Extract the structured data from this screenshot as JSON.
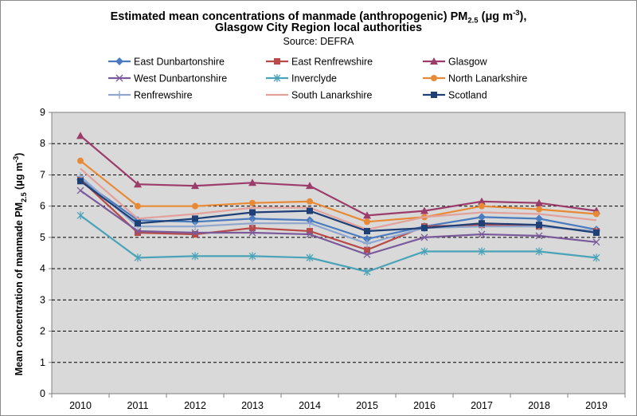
{
  "title_line1": "Estimated mean concentrations of manmade (anthropogenic) PM",
  "title_line1_sub": "2.5",
  "title_line1_unit": "(μg m",
  "title_line1_sup": "-3",
  "title_line1_end": "),",
  "title_line2": "Glasgow City Region local authorities",
  "source": "Source:  DEFRA",
  "chart_data": {
    "type": "line",
    "ylabel": "Mean concentration of manmade PM",
    "ylabel_sub": "2.5",
    "ylabel_unit": " (μg m",
    "ylabel_sup": "-3",
    "ylabel_end": ")",
    "ylim": [
      0,
      9
    ],
    "yticks": [
      "0",
      "1",
      "2",
      "3",
      "4",
      "5",
      "6",
      "7",
      "8",
      "9"
    ],
    "categories": [
      "2010",
      "2011",
      "2012",
      "2013",
      "2014",
      "2015",
      "2016",
      "2017",
      "2018",
      "2019"
    ],
    "grid": "horizontal dashed",
    "legend_position": "top",
    "series": [
      {
        "name": "East Dunbartonshire",
        "color": "#4a7bbf",
        "marker": "diamond",
        "values": [
          6.85,
          5.55,
          5.5,
          5.6,
          5.55,
          4.95,
          5.35,
          5.65,
          5.6,
          5.25
        ]
      },
      {
        "name": "East Renfrewshire",
        "color": "#b84a47",
        "marker": "square",
        "values": [
          6.85,
          5.15,
          5.1,
          5.3,
          5.2,
          4.6,
          5.35,
          5.4,
          5.35,
          5.2
        ]
      },
      {
        "name": "Glasgow",
        "color": "#9b3c6b",
        "marker": "triangle",
        "values": [
          8.25,
          6.7,
          6.65,
          6.75,
          6.65,
          5.7,
          5.85,
          6.15,
          6.1,
          5.85
        ]
      },
      {
        "name": "West Dunbartonshire",
        "color": "#7a5a9a",
        "marker": "x",
        "values": [
          6.5,
          5.2,
          5.15,
          5.15,
          5.1,
          4.45,
          5.0,
          5.1,
          5.05,
          4.85
        ]
      },
      {
        "name": "Inverclyde",
        "color": "#4aa3b8",
        "marker": "asterisk",
        "values": [
          5.7,
          4.35,
          4.4,
          4.4,
          4.35,
          3.9,
          4.55,
          4.55,
          4.55,
          4.35
        ]
      },
      {
        "name": "North Lanarkshire",
        "color": "#e88a35",
        "marker": "circle",
        "values": [
          7.45,
          6.0,
          6.0,
          6.1,
          6.15,
          5.5,
          5.65,
          6.0,
          5.9,
          5.75
        ]
      },
      {
        "name": "Renfrewshire",
        "color": "#8fa6cf",
        "marker": "plus",
        "values": [
          6.95,
          5.35,
          5.35,
          5.45,
          5.45,
          4.8,
          5.3,
          5.35,
          5.35,
          5.2
        ]
      },
      {
        "name": "South Lanarkshire",
        "color": "#e3a19c",
        "marker": "none",
        "values": [
          7.2,
          5.6,
          5.75,
          5.95,
          5.95,
          5.25,
          5.65,
          5.8,
          5.75,
          5.55
        ]
      },
      {
        "name": "Scotland",
        "color": "#1f3f77",
        "marker": "square",
        "values": [
          6.8,
          5.45,
          5.6,
          5.8,
          5.85,
          5.2,
          5.3,
          5.45,
          5.4,
          5.15
        ]
      }
    ]
  }
}
